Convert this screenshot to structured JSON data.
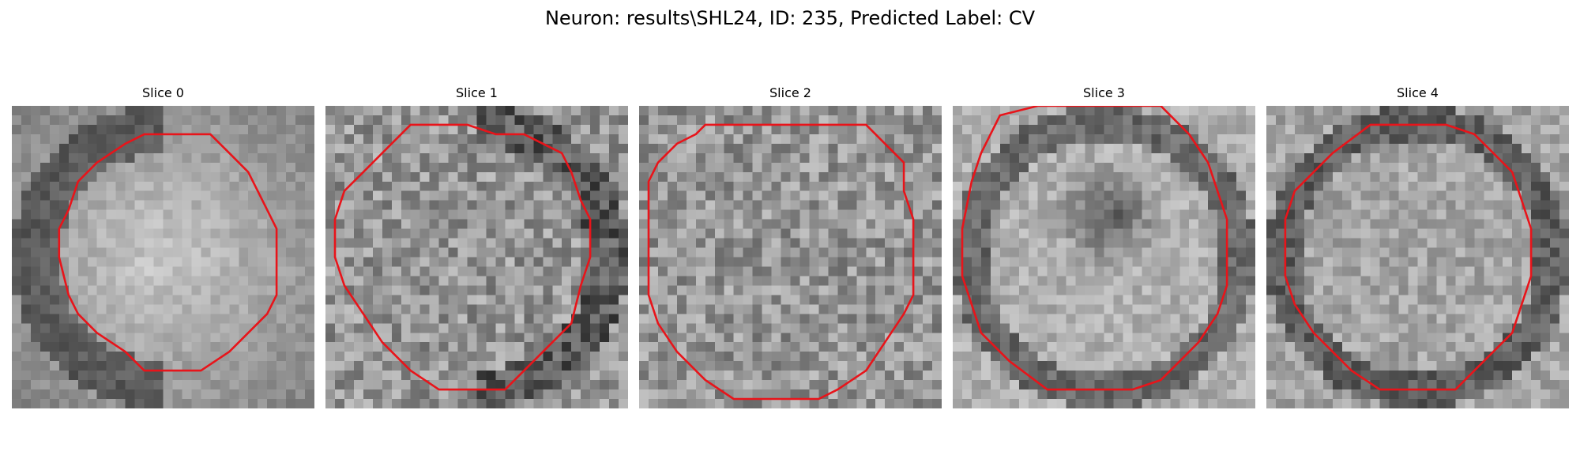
{
  "figure": {
    "title": "Neuron: results\\SHL24, ID: 235, Predicted Label: CV"
  },
  "panels": [
    {
      "title": "Slice 0",
      "seed": 11,
      "mode": "bright-center",
      "dark_ring": "left",
      "contour": "octagon-0"
    },
    {
      "title": "Slice 1",
      "seed": 23,
      "mode": "noisy",
      "dark_ring": "right",
      "contour": "octagon-1"
    },
    {
      "title": "Slice 2",
      "seed": 37,
      "mode": "noisy",
      "dark_ring": "none",
      "contour": "octagon-2"
    },
    {
      "title": "Slice 3",
      "seed": 51,
      "mode": "dark-center",
      "dark_ring": "full",
      "contour": "octagon-3"
    },
    {
      "title": "Slice 4",
      "seed": 67,
      "mode": "ring",
      "dark_ring": "full",
      "contour": "octagon-4"
    }
  ],
  "style": {
    "contour_color": "#e8141a",
    "colormap": "gray"
  }
}
